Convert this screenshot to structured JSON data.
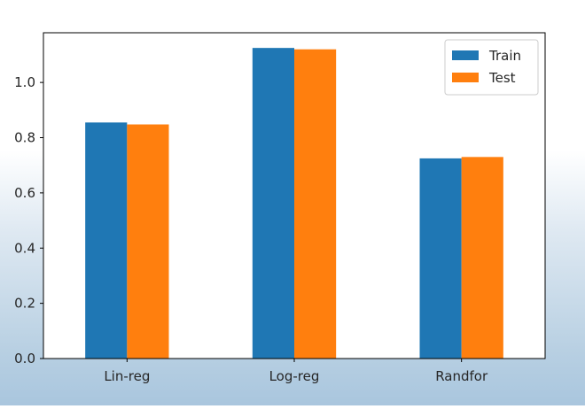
{
  "chart_data": {
    "type": "bar",
    "categories": [
      "Lin-reg",
      "Log-reg",
      "Randfor"
    ],
    "series": [
      {
        "name": "Train",
        "color": "#1f77b4",
        "values": [
          0.855,
          1.125,
          0.725
        ]
      },
      {
        "name": "Test",
        "color": "#ff7f0e",
        "values": [
          0.848,
          1.12,
          0.73
        ]
      }
    ],
    "title": "",
    "xlabel": "",
    "ylabel": "",
    "ylim": [
      0,
      1.18
    ],
    "yticks": [
      0.0,
      0.2,
      0.4,
      0.6,
      0.8,
      1.0
    ],
    "ytick_labels": [
      "0.0",
      "0.2",
      "0.4",
      "0.6",
      "0.8",
      "1.0"
    ],
    "legend_position": "top-right",
    "grid": false
  }
}
